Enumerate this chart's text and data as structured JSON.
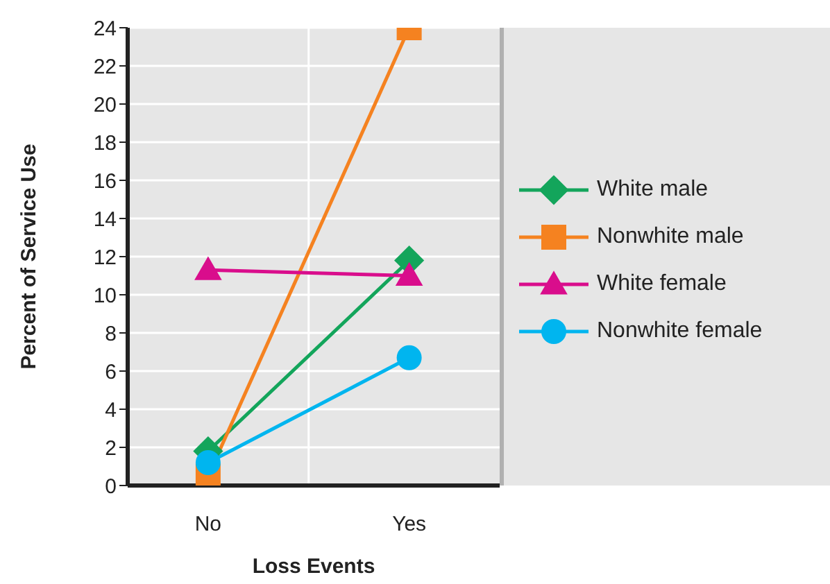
{
  "chart_data": {
    "type": "line",
    "xlabel": "Loss Events",
    "ylabel": "Percent of Service Use",
    "categories": [
      "No",
      "Yes"
    ],
    "series": [
      {
        "name": "White male",
        "color": "#13a55b",
        "marker": "diamond",
        "values": [
          1.8,
          11.8
        ]
      },
      {
        "name": "Nonwhite male",
        "color": "#f58220",
        "marker": "square",
        "values": [
          0.5,
          24
        ]
      },
      {
        "name": "White female",
        "color": "#d90d8c",
        "marker": "triangle",
        "values": [
          11.3,
          11.0
        ]
      },
      {
        "name": "Nonwhite female",
        "color": "#00b5ef",
        "marker": "circle",
        "values": [
          1.2,
          6.7
        ]
      }
    ],
    "ylim": [
      0,
      24
    ],
    "yticks": [
      0,
      2,
      4,
      6,
      8,
      10,
      12,
      14,
      16,
      18,
      20,
      22,
      24
    ],
    "grid": true,
    "legend": "right"
  }
}
